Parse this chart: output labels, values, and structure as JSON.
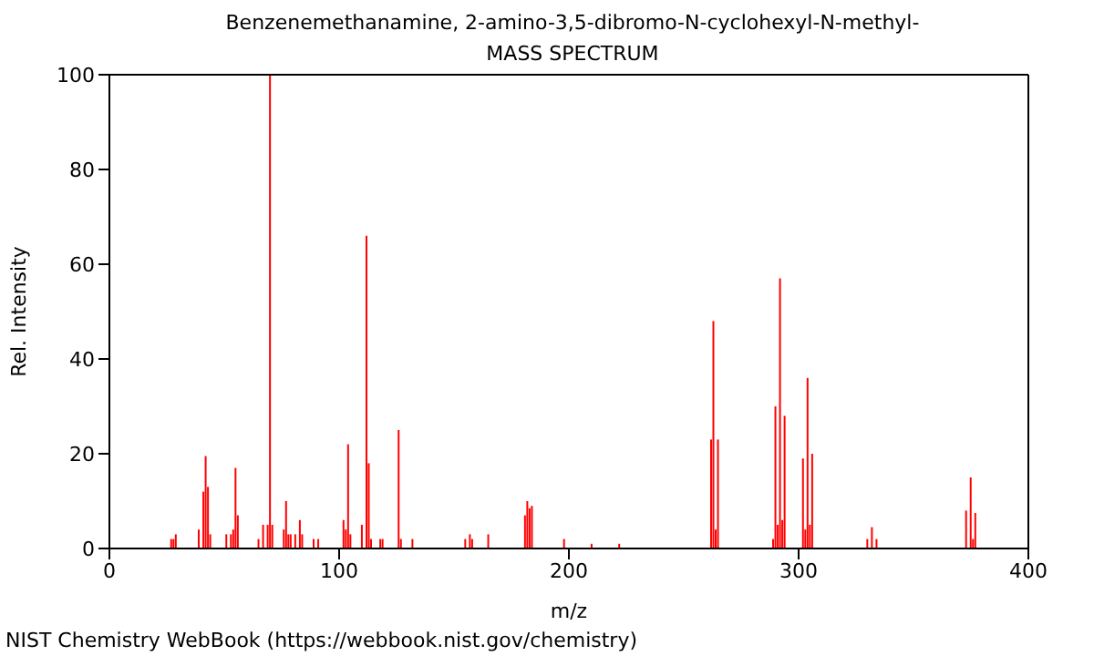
{
  "chart_data": {
    "type": "bar",
    "title": "Benzenemethanamine, 2-amino-3,5-dibromo-N-cyclohexyl-N-methyl-",
    "subtitle": "MASS SPECTRUM",
    "xlabel": "m/z",
    "ylabel": "Rel. Intensity",
    "annotations": [
      "NIST Chemistry WebBook (https://webbook.nist.gov/chemistry)"
    ],
    "x": [
      27,
      28,
      29,
      39,
      41,
      42,
      43,
      44,
      51,
      53,
      54,
      55,
      56,
      65,
      67,
      69,
      70,
      71,
      76,
      77,
      78,
      79,
      81,
      83,
      84,
      89,
      91,
      102,
      103,
      104,
      105,
      110,
      112,
      113,
      114,
      118,
      119,
      126,
      127,
      132,
      155,
      157,
      158,
      165,
      181,
      182,
      183,
      184,
      198,
      210,
      222,
      262,
      263,
      264,
      265,
      289,
      290,
      291,
      292,
      293,
      294,
      302,
      303,
      304,
      305,
      306,
      330,
      332,
      334,
      373,
      375,
      376,
      377
    ],
    "series": [
      {
        "color": "#ff0000",
        "values": [
          2,
          2,
          3,
          4,
          12,
          19.5,
          13,
          3,
          3,
          3,
          4,
          17,
          7,
          2,
          5,
          5,
          100,
          5,
          4,
          10,
          3,
          3,
          3,
          6,
          3,
          2,
          2,
          6,
          4,
          22,
          3,
          5,
          66,
          18,
          2,
          2,
          2,
          25,
          2,
          2,
          2,
          3,
          2,
          3,
          7,
          10,
          8.5,
          9,
          2,
          1,
          1,
          23,
          48,
          4,
          23,
          2,
          30,
          5,
          57,
          6,
          28,
          19,
          4,
          36,
          5,
          20,
          2,
          4.5,
          2,
          8,
          15,
          2,
          7.5
        ]
      }
    ],
    "xlim": [
      0,
      400
    ],
    "xticks": [
      0,
      100,
      200,
      300,
      400
    ],
    "ylim": [
      0,
      100
    ],
    "yticks": [
      0,
      20,
      40,
      60,
      80,
      100
    ]
  }
}
